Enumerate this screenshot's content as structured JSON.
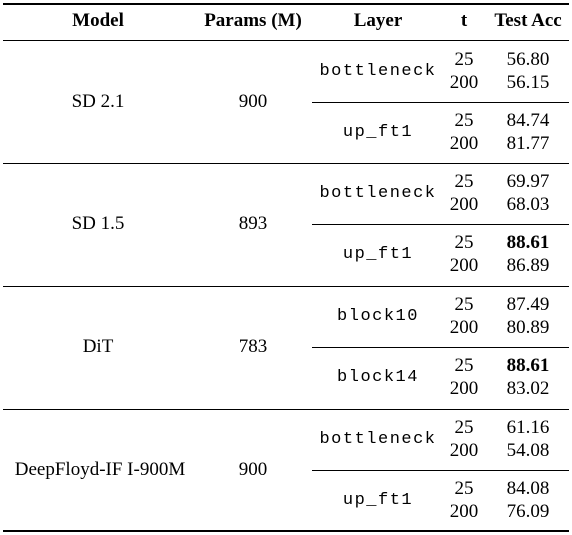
{
  "header": {
    "model": "Model",
    "params": "Params (M)",
    "layer": "Layer",
    "t": "t",
    "acc": "Test Acc"
  },
  "groups": [
    {
      "model": "SD 2.1",
      "params": "900",
      "layers": [
        {
          "name": "bottleneck",
          "rows": [
            {
              "t": "25",
              "acc": "56.80"
            },
            {
              "t": "200",
              "acc": "56.15"
            }
          ]
        },
        {
          "name": "up_ft1",
          "rows": [
            {
              "t": "25",
              "acc": "84.74"
            },
            {
              "t": "200",
              "acc": "81.77"
            }
          ]
        }
      ]
    },
    {
      "model": "SD 1.5",
      "params": "893",
      "layers": [
        {
          "name": "bottleneck",
          "rows": [
            {
              "t": "25",
              "acc": "69.97"
            },
            {
              "t": "200",
              "acc": "68.03"
            }
          ]
        },
        {
          "name": "up_ft1",
          "rows": [
            {
              "t": "25",
              "acc": "88.61",
              "bold": true
            },
            {
              "t": "200",
              "acc": "86.89"
            }
          ]
        }
      ]
    },
    {
      "model": "DiT",
      "params": "783",
      "layers": [
        {
          "name": "block10",
          "rows": [
            {
              "t": "25",
              "acc": "87.49"
            },
            {
              "t": "200",
              "acc": "80.89"
            }
          ]
        },
        {
          "name": "block14",
          "rows": [
            {
              "t": "25",
              "acc": "88.61",
              "bold": true
            },
            {
              "t": "200",
              "acc": "83.02"
            }
          ]
        }
      ]
    },
    {
      "model": "DeepFloyd-IF I-900M",
      "params": "900",
      "layers": [
        {
          "name": "bottleneck",
          "rows": [
            {
              "t": "25",
              "acc": "61.16"
            },
            {
              "t": "200",
              "acc": "54.08"
            }
          ]
        },
        {
          "name": "up_ft1",
          "rows": [
            {
              "t": "25",
              "acc": "84.08"
            },
            {
              "t": "200",
              "acc": "76.09"
            }
          ]
        }
      ]
    }
  ]
}
